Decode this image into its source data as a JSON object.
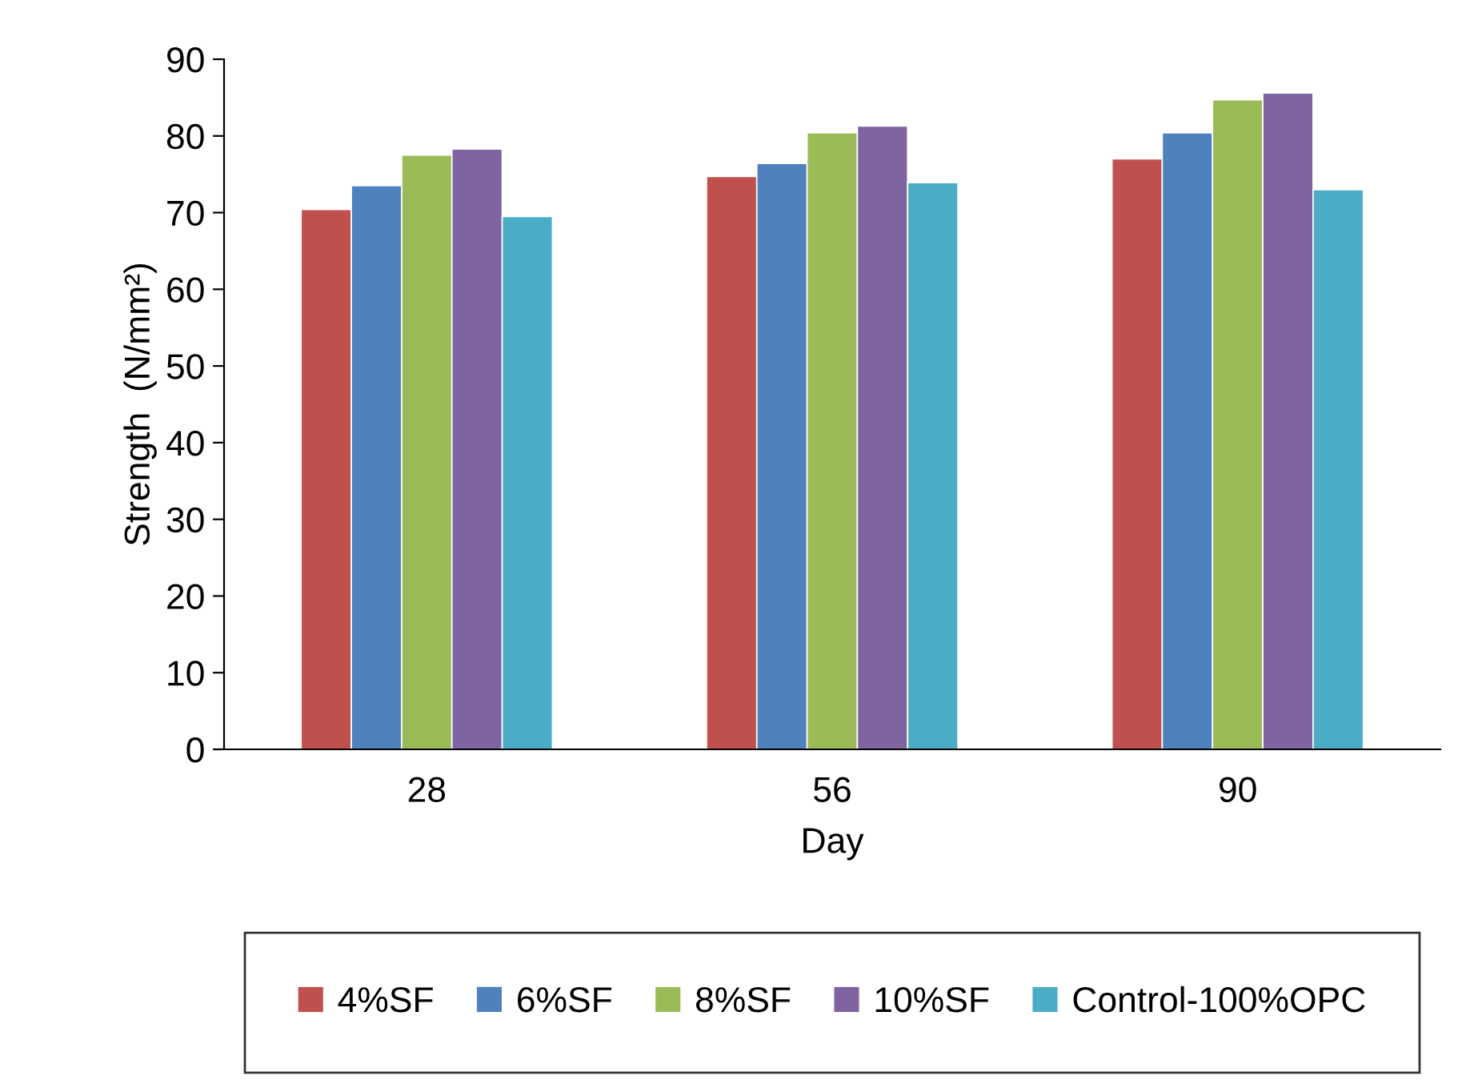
{
  "chart_data": {
    "type": "bar",
    "xlabel": "Day",
    "ylabel": "Strength  (N/mm²)",
    "categories": [
      "28",
      "56",
      "90"
    ],
    "series": [
      {
        "name": "4%SF",
        "color": "#c0504d",
        "values": [
          70.4,
          74.7,
          77.0
        ]
      },
      {
        "name": "6%SF",
        "color": "#4f81bd",
        "values": [
          73.5,
          76.4,
          80.4
        ]
      },
      {
        "name": "8%SF",
        "color": "#9bbb59",
        "values": [
          77.5,
          80.4,
          84.7
        ]
      },
      {
        "name": "10%SF",
        "color": "#8064a2",
        "values": [
          78.3,
          81.3,
          85.6
        ]
      },
      {
        "name": "Control-100%OPC",
        "color": "#4bacc6",
        "values": [
          69.5,
          73.9,
          73.0
        ]
      }
    ],
    "ylim": [
      0,
      90
    ],
    "yticks": [
      0,
      10,
      20,
      30,
      40,
      50,
      60,
      70,
      80,
      90
    ],
    "grid": false,
    "legend": "bottom"
  }
}
